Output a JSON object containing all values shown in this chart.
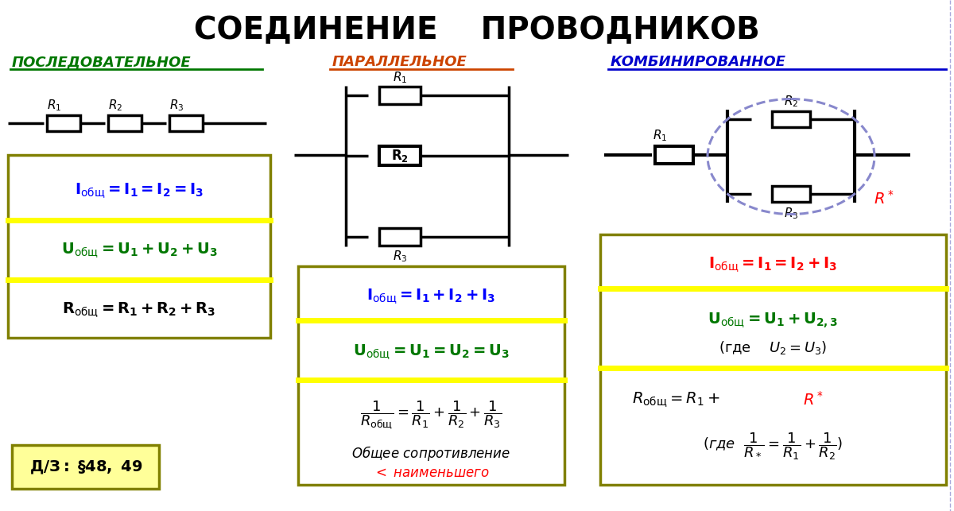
{
  "title": "СОЕДИНЕНИЕ    ПРОВОДНИКОВ",
  "col1_title": "ПОСЛЕДОВАТЕЛЬНОЕ",
  "col2_title": "ПАРАЛЛЕЛЬНОЕ",
  "col3_title": "КОМБИНИРОВАННОЕ",
  "col1_color": "#007700",
  "col2_color": "#cc4400",
  "col3_color": "#0000cc",
  "box_border": "#808000",
  "box_bg": "#ffffff",
  "yellow_line": "#ffff00",
  "hw_border": "#808000",
  "hw_bg": "#ffff99",
  "bg_color": "#ffffff"
}
